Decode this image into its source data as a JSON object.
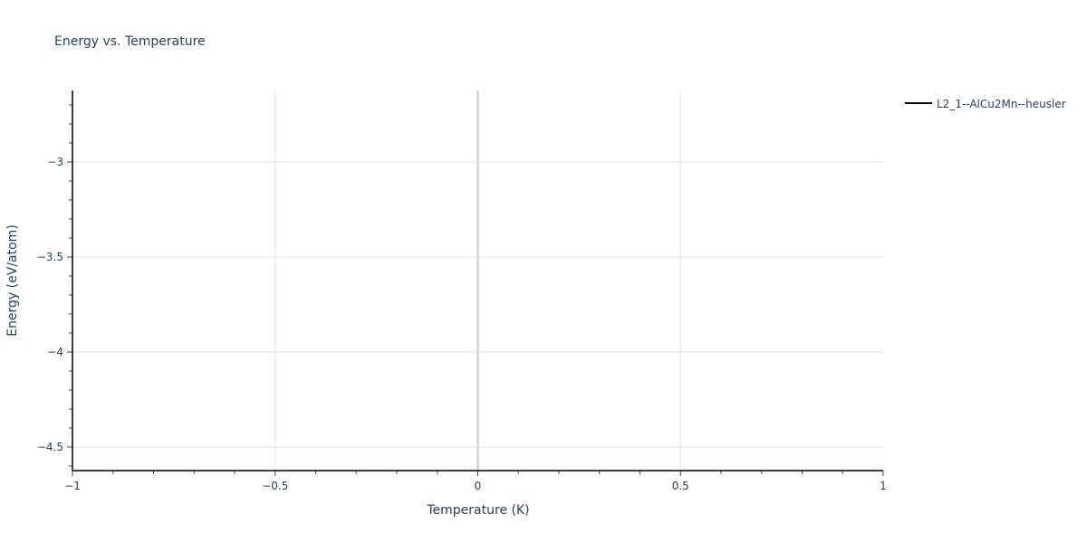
{
  "chart_data": {
    "type": "line",
    "title": "Energy vs. Temperature",
    "xlabel": "Temperature (K)",
    "ylabel": "Energy (eV/atom)",
    "xlim": [
      -1,
      1
    ],
    "ylim": [
      -4.624,
      -2.624
    ],
    "xticks": [
      -1,
      -0.5,
      0,
      0.5,
      1
    ],
    "xtick_labels": [
      "−1",
      "−0.5",
      "0",
      "0.5",
      "1"
    ],
    "yticks": [
      -3,
      -3.5,
      -4,
      -4.5
    ],
    "ytick_labels": [
      "−3",
      "−3.5",
      "−4",
      "−4.5"
    ],
    "grid": true,
    "legend_position": "top-right",
    "series": [
      {
        "name": "L2_1--AlCu2Mn--heusler",
        "color": "#000000",
        "x": [],
        "y": []
      }
    ]
  }
}
